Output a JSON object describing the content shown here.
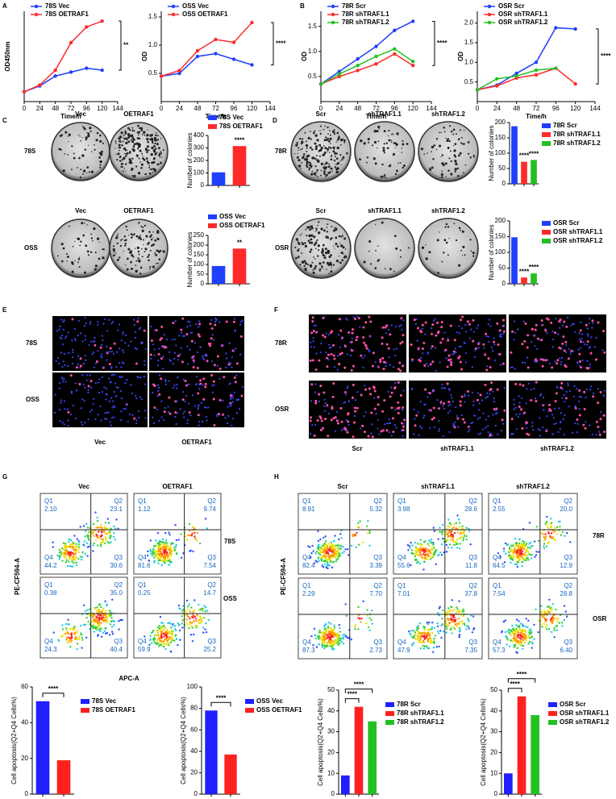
{
  "panels": {
    "letters": [
      "A",
      "B",
      "C",
      "D",
      "E",
      "F",
      "G",
      "H"
    ]
  },
  "colony": {
    "c_cols": [
      "Vec",
      "OETRAF1"
    ],
    "c_rows": [
      "78S",
      "OSS"
    ],
    "d_cols": [
      "Scr",
      "shTRAF1.1",
      "shTRAF1.2"
    ],
    "d_rows": [
      "78R",
      "OSR"
    ]
  },
  "fluorescence": {
    "e_rows": [
      "78S",
      "OSS"
    ],
    "e_cols": [
      "Vec",
      "OETRAF1"
    ],
    "f_rows": [
      "78R",
      "OSR"
    ],
    "f_cols": [
      "Scr",
      "shTRAF1.1",
      "shTRAF1.2"
    ]
  },
  "flow": {
    "quadrants": [
      "Q1",
      "Q2",
      "Q3",
      "Q4"
    ],
    "g_cols": [
      "Vec",
      "OETRAF1"
    ],
    "g_rows": [
      "78S",
      "OSS"
    ],
    "g_ylabel": "PE-CF594-A",
    "g_xlabel": "APC-A",
    "g_plots": [
      [
        [
          "2.10",
          "23.1",
          "30.6",
          "44.2"
        ],
        [
          "1.12",
          "9.74",
          "7.54",
          "81.6"
        ]
      ],
      [
        [
          "0.38",
          "35.0",
          "40.4",
          "24.3"
        ],
        [
          "0.25",
          "14.7",
          "25.2",
          "59.9"
        ]
      ]
    ],
    "h_cols": [
      "Scr",
      "shTRAF1.1",
      "shTRAF1.2"
    ],
    "h_rows": [
      "78R",
      "OSR"
    ],
    "h_ylabel": "PE-CF594-A",
    "h_plots": [
      [
        [
          "8.91",
          "5.32",
          "3.39",
          "82.4"
        ],
        [
          "3.98",
          "28.6",
          "11.8",
          "55.6"
        ],
        [
          "2.55",
          "20.0",
          "12.9",
          "64.5"
        ]
      ],
      [
        [
          "2.29",
          "7.70",
          "2.73",
          "87.3"
        ],
        [
          "7.01",
          "37.8",
          "7.35",
          "47.9"
        ],
        [
          "7.54",
          "28.8",
          "6.40",
          "57.3"
        ]
      ]
    ]
  },
  "chart_data": [
    {
      "type": "line",
      "x": [
        0,
        24,
        48,
        72,
        96,
        120
      ],
      "xlim": [
        0,
        144
      ],
      "xticks": [
        0,
        24,
        48,
        72,
        96,
        120,
        144
      ],
      "ylim": [
        0,
        2.3
      ],
      "xlabel": "Time/h",
      "ylabel": "OD450nm",
      "series": [
        {
          "name": "78S Vec",
          "color": "#1f3fff",
          "values": [
            0.25,
            0.4,
            0.65,
            0.75,
            0.85,
            0.8
          ]
        },
        {
          "name": "78S OETRAF1",
          "color": "#ff2a2a",
          "values": [
            0.25,
            0.42,
            0.8,
            1.5,
            1.9,
            2.05
          ]
        }
      ],
      "annotations": [
        "**"
      ]
    },
    {
      "type": "line",
      "x": [
        0,
        24,
        48,
        72,
        96,
        120
      ],
      "xlim": [
        0,
        144
      ],
      "xticks": [
        0,
        24,
        48,
        72,
        96,
        120,
        144
      ],
      "ylim": [
        0,
        1.6
      ],
      "yticks": [
        {
          "value": 0.5,
          "label": "0.5"
        },
        {
          "value": 1,
          "label": "1.0"
        },
        {
          "value": 1.5,
          "label": "1.5"
        }
      ],
      "xlabel": "Time/h",
      "ylabel": "OD",
      "series": [
        {
          "name": "OSS Vec",
          "color": "#1f3fff",
          "values": [
            0.45,
            0.5,
            0.8,
            0.85,
            0.75,
            0.65
          ]
        },
        {
          "name": "OSS OETRAF1",
          "color": "#ff2a2a",
          "values": [
            0.45,
            0.55,
            0.9,
            1.1,
            1.05,
            1.4
          ]
        }
      ],
      "annotations": [
        "****"
      ]
    },
    {
      "type": "line",
      "x": [
        0,
        24,
        48,
        72,
        96,
        120
      ],
      "xlim": [
        0,
        144
      ],
      "xticks": [
        0,
        24,
        48,
        72,
        96,
        120,
        144
      ],
      "ylim": [
        0,
        1.8
      ],
      "yticks": [
        {
          "value": 0.5,
          "label": "0.5"
        },
        {
          "value": 1,
          "label": "1.0"
        },
        {
          "value": 1.5,
          "label": "1.5"
        }
      ],
      "xlabel": "Time/h",
      "ylabel": "OD",
      "series": [
        {
          "name": "78R Scr",
          "color": "#1f3fff",
          "values": [
            0.35,
            0.6,
            0.85,
            1.1,
            1.42,
            1.6
          ]
        },
        {
          "name": "78R shTRAF1.1",
          "color": "#ff2a2a",
          "values": [
            0.35,
            0.5,
            0.62,
            0.75,
            0.95,
            0.72
          ]
        },
        {
          "name": "78R shTRAF1.2",
          "color": "#22c022",
          "values": [
            0.35,
            0.55,
            0.72,
            0.9,
            1.05,
            0.8
          ]
        }
      ],
      "annotations": [
        "****"
      ]
    },
    {
      "type": "line",
      "x": [
        0,
        24,
        48,
        72,
        96,
        120
      ],
      "xlim": [
        0,
        144
      ],
      "xticks": [
        0,
        24,
        48,
        72,
        96,
        120,
        144
      ],
      "ylim": [
        0,
        2.3
      ],
      "yticks": [
        {
          "value": 0.5,
          "label": "0.5"
        },
        {
          "value": 1,
          "label": "1.0"
        },
        {
          "value": 1.5,
          "label": "1.5"
        },
        {
          "value": 2,
          "label": "2.0"
        }
      ],
      "xlabel": "Time/h",
      "ylabel": "OD",
      "series": [
        {
          "name": "OSR Scr",
          "color": "#1f3fff",
          "values": [
            0.3,
            0.42,
            0.72,
            1.0,
            1.88,
            1.85
          ]
        },
        {
          "name": "OSR shTRAF1.1",
          "color": "#ff2a2a",
          "values": [
            0.3,
            0.4,
            0.6,
            0.68,
            0.85,
            0.45
          ]
        },
        {
          "name": "OSR shTRAF1.2",
          "color": "#22c022",
          "values": [
            0.3,
            0.58,
            0.65,
            0.8,
            0.85,
            null
          ]
        }
      ],
      "annotations": [
        "****"
      ]
    },
    {
      "type": "bar",
      "ylabel": "Number of colonies",
      "ylim": [
        0,
        400
      ],
      "yticks": [
        0,
        100,
        200,
        300,
        400
      ],
      "series": [
        {
          "name": "78S Vec",
          "color": "#1f3fff",
          "values": [
            105
          ]
        },
        {
          "name": "78S OETRAF1",
          "color": "#ff2a2a",
          "values": [
            315
          ]
        }
      ],
      "annotations": [
        "****"
      ]
    },
    {
      "type": "bar",
      "ylabel": "Number of colonies",
      "ylim": [
        0,
        250
      ],
      "yticks": [
        0,
        50,
        100,
        150,
        200,
        250
      ],
      "series": [
        {
          "name": "OSS Vec",
          "color": "#1f3fff",
          "values": [
            92
          ]
        },
        {
          "name": "OSS OETRAF1",
          "color": "#ff2a2a",
          "values": [
            182
          ]
        }
      ],
      "annotations": [
        "**"
      ]
    },
    {
      "type": "bar",
      "ylabel": "Number of colonies",
      "ylim": [
        0,
        200
      ],
      "yticks": [
        0,
        50,
        100,
        150,
        200
      ],
      "series": [
        {
          "name": "78R Scr",
          "color": "#1f3fff",
          "values": [
            188
          ]
        },
        {
          "name": "78R shTRAF1.1",
          "color": "#ff2a2a",
          "values": [
            72
          ]
        },
        {
          "name": "78R shTRAF1.2",
          "color": "#22c022",
          "values": [
            78
          ]
        }
      ],
      "annotations": [
        "****",
        "****"
      ]
    },
    {
      "type": "bar",
      "ylabel": "Number of colonies",
      "ylim": [
        0,
        200
      ],
      "yticks": [
        0,
        50,
        100,
        150,
        200
      ],
      "series": [
        {
          "name": "OSR Scr",
          "color": "#1f3fff",
          "values": [
            148
          ]
        },
        {
          "name": "OSR shTRAF1.1",
          "color": "#ff2a2a",
          "values": [
            20
          ]
        },
        {
          "name": "OSR shTRAF1.2",
          "color": "#22c022",
          "values": [
            33
          ]
        }
      ],
      "annotations": [
        "****",
        "****"
      ]
    },
    {
      "type": "bar",
      "ylabel": "Cell apoptosis(Q2+Q4 Cells%)",
      "ylim": [
        0,
        60
      ],
      "yticks": [
        0,
        20,
        40,
        60
      ],
      "series": [
        {
          "name": "78S Vec",
          "color": "#1f1fff",
          "values": [
            52
          ]
        },
        {
          "name": "78S OETRAF1",
          "color": "#ff2020",
          "values": [
            19
          ]
        }
      ],
      "annotations": [
        "****"
      ]
    },
    {
      "type": "bar",
      "ylabel": "Cell apoptosis(Q2+Q4 Cells%)",
      "ylim": [
        0,
        100
      ],
      "yticks": [
        0,
        20,
        40,
        60,
        80,
        100
      ],
      "series": [
        {
          "name": "OSS Vec",
          "color": "#1f1fff",
          "values": [
            78
          ]
        },
        {
          "name": "OSS OETRAF1",
          "color": "#ff2020",
          "values": [
            37
          ]
        }
      ],
      "annotations": [
        "****"
      ]
    },
    {
      "type": "bar",
      "ylabel": "Cell apoptosis(Q2+Q4 Cells%)",
      "ylim": [
        0,
        50
      ],
      "yticks": [
        0,
        10,
        20,
        30,
        40,
        50
      ],
      "series": [
        {
          "name": "78R Scr",
          "color": "#1f1fff",
          "values": [
            9
          ]
        },
        {
          "name": "78R shTRAF1.1",
          "color": "#ff2020",
          "values": [
            42
          ]
        },
        {
          "name": "78R shTRAF1.2",
          "color": "#22c022",
          "values": [
            35
          ]
        }
      ],
      "annotations": [
        "****",
        "****"
      ]
    },
    {
      "type": "bar",
      "ylabel": "Cell apoptosis(Q2+Q4 Cells%)",
      "ylim": [
        0,
        50
      ],
      "yticks": [
        0,
        10,
        20,
        30,
        40,
        50
      ],
      "series": [
        {
          "name": "OSR Scr",
          "color": "#1f1fff",
          "values": [
            10
          ]
        },
        {
          "name": "OSR shTRAF1.1",
          "color": "#ff2020",
          "values": [
            47
          ]
        },
        {
          "name": "OSR shTRAF1.2",
          "color": "#22c022",
          "values": [
            38
          ]
        }
      ],
      "annotations": [
        "****",
        "****"
      ]
    }
  ]
}
